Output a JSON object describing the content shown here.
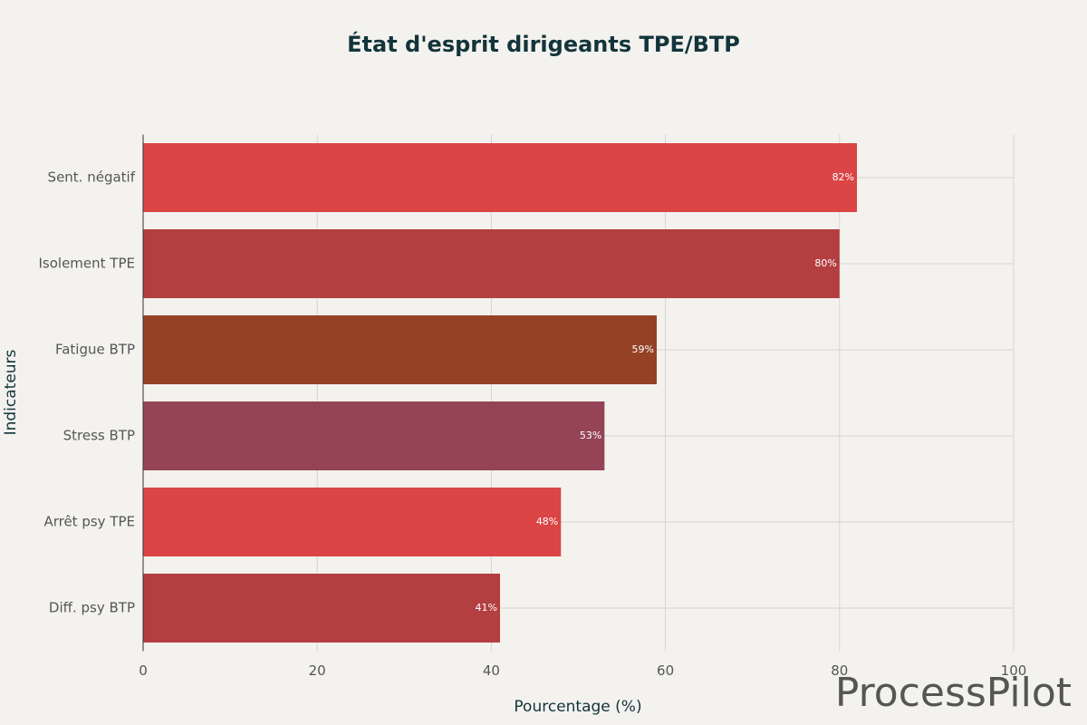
{
  "chart_data": {
    "type": "hbar",
    "title": "État d'esprit dirigeants TPE/BTP",
    "categories": [
      "Sent. négatif",
      "Isolement TPE",
      "Fatigue BTP",
      "Stress BTP",
      "Arrêt psy TPE",
      "Diff. psy BTP"
    ],
    "values": [
      82,
      80,
      59,
      53,
      48,
      41
    ],
    "value_labels": [
      "82%",
      "80%",
      "59%",
      "53%",
      "48%",
      "41%"
    ],
    "colors": [
      "#DB4545",
      "#B33F40",
      "#944125",
      "#944454",
      "#DB4545",
      "#B33F40"
    ],
    "xlim": [
      0,
      100
    ],
    "xticks": [
      0,
      20,
      40,
      60,
      80,
      100
    ],
    "xlabel": "Pourcentage (%)",
    "ylabel": "Indicateurs",
    "grid": true,
    "watermark": "ProcessPilot"
  }
}
